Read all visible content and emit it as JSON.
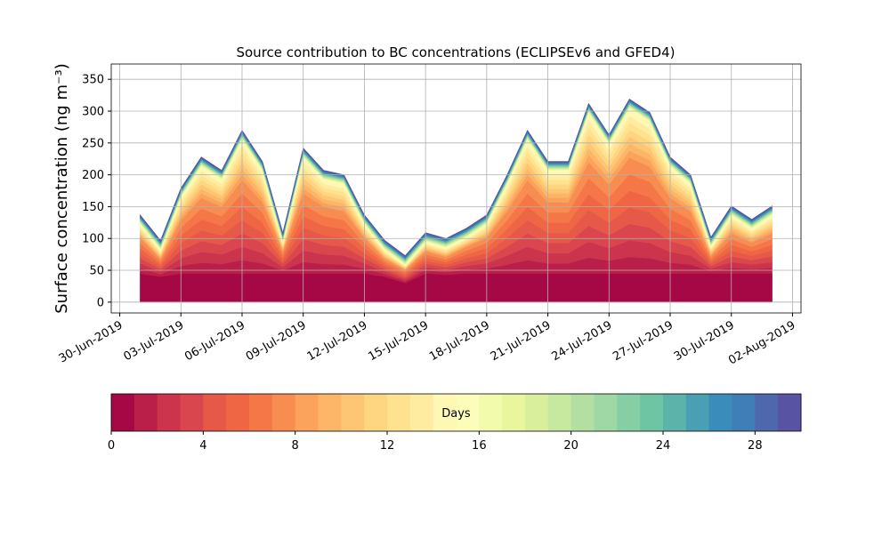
{
  "chart_data": {
    "type": "stacked_area",
    "title": "Source contribution to BC concentrations (ECLIPSEv6 and GFED4)",
    "y_label": "Surface concentration (ng m⁻³)",
    "x": [
      "2019-07-01",
      "2019-07-02",
      "2019-07-03",
      "2019-07-04",
      "2019-07-05",
      "2019-07-06",
      "2019-07-07",
      "2019-07-08",
      "2019-07-09",
      "2019-07-10",
      "2019-07-11",
      "2019-07-12",
      "2019-07-13",
      "2019-07-14",
      "2019-07-15",
      "2019-07-16",
      "2019-07-17",
      "2019-07-18",
      "2019-07-19",
      "2019-07-20",
      "2019-07-21",
      "2019-07-22",
      "2019-07-23",
      "2019-07-24",
      "2019-07-25",
      "2019-07-26",
      "2019-07-27",
      "2019-07-28",
      "2019-07-29",
      "2019-07-30",
      "2019-07-31",
      "2019-08-01"
    ],
    "xlim": [
      "2019-06-29T14:00",
      "2019-08-02T10:00"
    ],
    "xticks": [
      {
        "value": "2019-06-30",
        "label": "30-Jun-2019"
      },
      {
        "value": "2019-07-03",
        "label": "03-Jul-2019"
      },
      {
        "value": "2019-07-06",
        "label": "06-Jul-2019"
      },
      {
        "value": "2019-07-09",
        "label": "09-Jul-2019"
      },
      {
        "value": "2019-07-12",
        "label": "12-Jul-2019"
      },
      {
        "value": "2019-07-15",
        "label": "15-Jul-2019"
      },
      {
        "value": "2019-07-18",
        "label": "18-Jul-2019"
      },
      {
        "value": "2019-07-21",
        "label": "21-Jul-2019"
      },
      {
        "value": "2019-07-24",
        "label": "24-Jul-2019"
      },
      {
        "value": "2019-07-27",
        "label": "27-Jul-2019"
      },
      {
        "value": "2019-07-30",
        "label": "30-Jul-2019"
      },
      {
        "value": "2019-08-02",
        "label": "02-Aug-2019"
      }
    ],
    "ylim": [
      -17,
      374
    ],
    "yticks": [
      0,
      50,
      100,
      150,
      200,
      250,
      300,
      350
    ],
    "grid": true,
    "series": [
      {
        "color": "#a50844",
        "values": [
          45,
          40,
          45,
          45,
          45,
          45,
          45,
          45,
          45,
          45,
          45,
          45,
          40,
          30,
          45,
          43,
          45,
          45,
          45,
          45,
          45,
          45,
          45,
          45,
          45,
          45,
          45,
          45,
          45,
          45,
          45,
          45
        ]
      },
      {
        "color": "#b91f48",
        "values": [
          8,
          4,
          12,
          17,
          15,
          21,
          16,
          5,
          18,
          15,
          14,
          8,
          4,
          3,
          5,
          4,
          6,
          8,
          14,
          21,
          16,
          16,
          25,
          20,
          26,
          24,
          17,
          14,
          4,
          9,
          7,
          9
        ]
      },
      {
        "color": "#cc334d",
        "values": [
          8,
          4,
          12,
          17,
          15,
          21,
          16,
          5,
          18,
          15,
          14,
          8,
          4,
          3,
          5,
          4,
          6,
          8,
          14,
          21,
          16,
          16,
          25,
          20,
          26,
          24,
          17,
          14,
          4,
          9,
          7,
          9
        ]
      },
      {
        "color": "#da464d",
        "values": [
          8,
          4,
          12,
          17,
          15,
          21,
          16,
          5,
          18,
          15,
          14,
          8,
          4,
          3,
          5,
          4,
          6,
          8,
          14,
          21,
          16,
          16,
          25,
          20,
          26,
          24,
          17,
          14,
          4,
          9,
          7,
          9
        ]
      },
      {
        "color": "#e65848",
        "values": [
          8,
          4,
          12,
          17,
          15,
          21,
          16,
          5,
          18,
          15,
          14,
          8,
          4,
          3,
          5,
          4,
          6,
          8,
          14,
          21,
          16,
          16,
          25,
          20,
          26,
          24,
          17,
          14,
          4,
          9,
          7,
          9
        ]
      },
      {
        "color": "#ef6645",
        "values": [
          8,
          4,
          12,
          17,
          15,
          21,
          16,
          5,
          18,
          15,
          14,
          8,
          4,
          3,
          5,
          4,
          6,
          8,
          14,
          21,
          16,
          16,
          25,
          20,
          26,
          24,
          17,
          14,
          4,
          9,
          7,
          9
        ]
      },
      {
        "color": "#f57748",
        "values": [
          8,
          4,
          12,
          17,
          15,
          21,
          16,
          5,
          18,
          15,
          14,
          8,
          4,
          3,
          5,
          4,
          6,
          8,
          14,
          21,
          16,
          16,
          25,
          20,
          26,
          24,
          17,
          14,
          4,
          9,
          7,
          9
        ]
      },
      {
        "color": "#f88d52",
        "values": [
          8,
          4,
          12,
          17,
          15,
          21,
          16,
          5,
          18,
          15,
          14,
          8,
          4,
          3,
          5,
          4,
          6,
          8,
          14,
          21,
          16,
          16,
          25,
          20,
          26,
          24,
          17,
          14,
          4,
          9,
          7,
          9
        ]
      },
      {
        "color": "#fba35c",
        "values": [
          3,
          2,
          5,
          7,
          6,
          9,
          7,
          2,
          8,
          6,
          6,
          3,
          2,
          1,
          2,
          2,
          2,
          3,
          6,
          9,
          7,
          7,
          11,
          9,
          11,
          10,
          7,
          6,
          2,
          4,
          3,
          4
        ]
      },
      {
        "color": "#fdb567",
        "values": [
          3,
          2,
          5,
          7,
          6,
          9,
          7,
          2,
          8,
          6,
          6,
          3,
          2,
          1,
          2,
          2,
          2,
          3,
          6,
          9,
          7,
          7,
          11,
          9,
          11,
          10,
          7,
          6,
          2,
          4,
          3,
          4
        ]
      },
      {
        "color": "#fdc674",
        "values": [
          3,
          2,
          5,
          7,
          6,
          9,
          7,
          2,
          8,
          6,
          6,
          3,
          2,
          1,
          2,
          2,
          2,
          3,
          6,
          9,
          7,
          7,
          11,
          9,
          11,
          10,
          7,
          6,
          2,
          4,
          3,
          4
        ]
      },
      {
        "color": "#fed682",
        "values": [
          3,
          2,
          5,
          7,
          6,
          9,
          7,
          2,
          8,
          6,
          6,
          3,
          2,
          1,
          2,
          2,
          2,
          3,
          6,
          9,
          7,
          7,
          11,
          9,
          11,
          10,
          7,
          6,
          2,
          4,
          3,
          4
        ]
      },
      {
        "color": "#fee28f",
        "values": [
          3,
          2,
          5,
          7,
          6,
          9,
          7,
          2,
          8,
          6,
          6,
          3,
          2,
          1,
          2,
          2,
          2,
          3,
          6,
          9,
          7,
          7,
          11,
          9,
          11,
          10,
          7,
          6,
          2,
          4,
          3,
          4
        ]
      },
      {
        "color": "#feeda1",
        "values": [
          3,
          2,
          5,
          7,
          6,
          9,
          7,
          2,
          8,
          6,
          6,
          3,
          2,
          1,
          2,
          2,
          2,
          3,
          6,
          9,
          7,
          7,
          11,
          9,
          11,
          10,
          7,
          6,
          2,
          4,
          3,
          4
        ]
      },
      {
        "color": "#fff8b5",
        "values": [
          3,
          2,
          5,
          7,
          6,
          9,
          7,
          2,
          8,
          6,
          6,
          3,
          2,
          1,
          2,
          2,
          2,
          3,
          6,
          9,
          7,
          7,
          11,
          9,
          11,
          10,
          7,
          6,
          2,
          4,
          3,
          4
        ]
      },
      {
        "color": "#fbfdb9",
        "values": [
          1,
          1,
          1,
          1,
          1,
          1,
          1,
          1,
          1,
          1,
          1,
          1,
          1,
          1,
          1,
          1,
          1,
          1,
          1,
          1,
          1,
          1,
          1,
          1,
          1,
          1,
          1,
          1,
          1,
          1,
          1,
          1
        ]
      },
      {
        "color": "#f2faac",
        "values": [
          1,
          1,
          1,
          1,
          1,
          1,
          1,
          1,
          1,
          1,
          1,
          1,
          1,
          1,
          1,
          1,
          1,
          1,
          1,
          1,
          1,
          1,
          1,
          1,
          1,
          1,
          1,
          1,
          1,
          1,
          1,
          1
        ]
      },
      {
        "color": "#e9f69d",
        "values": [
          1,
          1,
          1,
          1,
          1,
          1,
          1,
          1,
          1,
          1,
          1,
          1,
          1,
          1,
          1,
          1,
          1,
          1,
          1,
          1,
          1,
          1,
          1,
          1,
          1,
          1,
          1,
          1,
          1,
          1,
          1,
          1
        ]
      },
      {
        "color": "#d9ef9b",
        "values": [
          1,
          1,
          1,
          1,
          1,
          1,
          1,
          1,
          1,
          1,
          1,
          1,
          1,
          1,
          1,
          1,
          1,
          1,
          1,
          1,
          1,
          1,
          1,
          1,
          1,
          1,
          1,
          1,
          1,
          1,
          1,
          1
        ]
      },
      {
        "color": "#c7e89f",
        "values": [
          1,
          1,
          1,
          1,
          1,
          1,
          1,
          1,
          1,
          1,
          1,
          1,
          1,
          1,
          1,
          1,
          1,
          1,
          1,
          1,
          1,
          1,
          1,
          1,
          1,
          1,
          1,
          1,
          1,
          1,
          1,
          1
        ]
      },
      {
        "color": "#b3e0a2",
        "values": [
          1,
          1,
          1,
          1,
          1,
          1,
          1,
          1,
          1,
          1,
          1,
          1,
          1,
          1,
          1,
          1,
          1,
          1,
          1,
          1,
          1,
          1,
          1,
          1,
          1,
          1,
          1,
          1,
          1,
          1,
          1,
          1
        ]
      },
      {
        "color": "#9fd8a4",
        "values": [
          1,
          1,
          1,
          1,
          1,
          1,
          1,
          1,
          1,
          1,
          1,
          1,
          1,
          1,
          1,
          1,
          1,
          1,
          1,
          1,
          1,
          1,
          1,
          1,
          1,
          1,
          1,
          1,
          1,
          1,
          1,
          1
        ]
      },
      {
        "color": "#86cea4",
        "values": [
          1,
          1,
          1,
          1,
          1,
          1,
          1,
          1,
          1,
          1,
          1,
          1,
          1,
          1,
          1,
          1,
          1,
          1,
          1,
          1,
          1,
          1,
          1,
          1,
          1,
          1,
          1,
          1,
          1,
          1,
          1,
          1
        ]
      },
      {
        "color": "#6ec5a4",
        "values": [
          1,
          1,
          1,
          1,
          1,
          1,
          1,
          1,
          1,
          1,
          1,
          1,
          1,
          1,
          1,
          1,
          1,
          1,
          1,
          1,
          1,
          1,
          1,
          1,
          1,
          1,
          1,
          1,
          1,
          1,
          1,
          1
        ]
      },
      {
        "color": "#5cb3a9",
        "values": [
          1,
          1,
          1,
          1,
          1,
          1,
          1,
          1,
          1,
          1,
          1,
          1,
          1,
          1,
          1,
          1,
          1,
          1,
          1,
          1,
          1,
          1,
          1,
          1,
          1,
          1,
          1,
          1,
          1,
          1,
          1,
          1
        ]
      },
      {
        "color": "#4a9fb2",
        "values": [
          1,
          1,
          1,
          1,
          1,
          1,
          1,
          1,
          1,
          1,
          1,
          1,
          1,
          1,
          1,
          1,
          1,
          1,
          1,
          1,
          1,
          1,
          1,
          1,
          1,
          1,
          1,
          1,
          1,
          1,
          1,
          1
        ]
      },
      {
        "color": "#3a8dba",
        "values": [
          1,
          1,
          1,
          1,
          1,
          1,
          1,
          1,
          1,
          1,
          1,
          1,
          1,
          1,
          1,
          1,
          1,
          1,
          1,
          1,
          1,
          1,
          1,
          1,
          1,
          1,
          1,
          1,
          1,
          1,
          1,
          1
        ]
      },
      {
        "color": "#3f7eb6",
        "values": [
          1,
          1,
          1,
          1,
          1,
          1,
          1,
          1,
          1,
          1,
          1,
          1,
          1,
          1,
          1,
          1,
          1,
          1,
          1,
          1,
          1,
          1,
          1,
          1,
          1,
          1,
          1,
          1,
          1,
          1,
          1,
          1
        ]
      },
      {
        "color": "#4f67ac",
        "values": [
          1,
          1,
          1,
          1,
          1,
          1,
          1,
          1,
          1,
          1,
          1,
          1,
          1,
          1,
          1,
          1,
          1,
          1,
          1,
          1,
          1,
          1,
          1,
          1,
          1,
          1,
          1,
          1,
          1,
          1,
          1,
          1
        ]
      },
      {
        "color": "#5953a3",
        "values": [
          1,
          1,
          1,
          1,
          1,
          1,
          1,
          1,
          1,
          1,
          1,
          1,
          1,
          1,
          1,
          1,
          1,
          1,
          1,
          1,
          1,
          1,
          1,
          1,
          1,
          1,
          1,
          1,
          1,
          1,
          1,
          1
        ]
      }
    ],
    "colorbar": {
      "label": "Days",
      "lim": [
        0,
        30
      ],
      "ticks": [
        0,
        4,
        8,
        12,
        16,
        20,
        24,
        28
      ]
    }
  }
}
